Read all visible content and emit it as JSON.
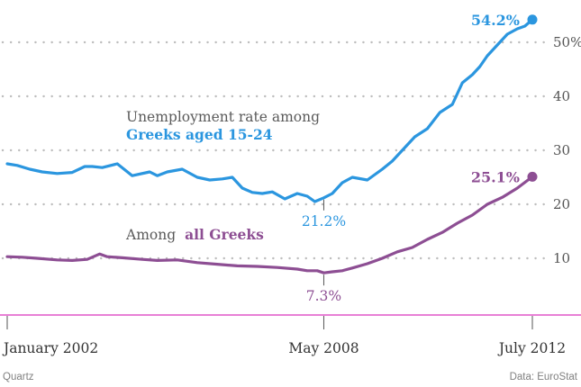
{
  "chart_data": {
    "type": "line",
    "title": "",
    "xlabel": "",
    "ylabel": "",
    "ylim": [
      0,
      55
    ],
    "xlim": [
      2002.0,
      2012.5
    ],
    "y_ticks": [
      10,
      20,
      30,
      40,
      50
    ],
    "y_tick_labels": [
      "10",
      "20",
      "30",
      "40",
      "50%"
    ],
    "x_tick_labels": [
      {
        "x": 2002.0,
        "label": "January 2002"
      },
      {
        "x": 2008.33,
        "label": "May 2008"
      },
      {
        "x": 2012.5,
        "label": "July 2012"
      }
    ],
    "grid": "dotted-horizontal",
    "series": [
      {
        "name": "Greeks aged 15-24",
        "label_prefix": "Unemployment rate among",
        "label_emphasis": "Greeks aged 15-24",
        "color": "#2b96df",
        "x": [
          2002.0,
          2002.2,
          2002.45,
          2002.7,
          2003.0,
          2003.3,
          2003.55,
          2003.7,
          2003.9,
          2004.2,
          2004.5,
          2004.85,
          2005.0,
          2005.2,
          2005.5,
          2005.8,
          2006.05,
          2006.3,
          2006.5,
          2006.7,
          2006.9,
          2007.1,
          2007.3,
          2007.55,
          2007.8,
          2008.0,
          2008.15,
          2008.33,
          2008.5,
          2008.7,
          2008.9,
          2009.2,
          2009.5,
          2009.7,
          2009.9,
          2010.15,
          2010.4,
          2010.65,
          2010.9,
          2011.1,
          2011.3,
          2011.45,
          2011.6,
          2011.8,
          2012.0,
          2012.2,
          2012.35,
          2012.5
        ],
        "values": [
          27.5,
          27.2,
          26.5,
          26.0,
          25.7,
          25.9,
          27.0,
          27.0,
          26.8,
          27.5,
          25.3,
          26.0,
          25.3,
          26.0,
          26.5,
          25.0,
          24.5,
          24.7,
          25.0,
          23.0,
          22.2,
          22.0,
          22.3,
          21.0,
          22.0,
          21.5,
          20.5,
          21.2,
          22.0,
          24.0,
          25.0,
          24.5,
          26.5,
          28.0,
          30.0,
          32.5,
          34.0,
          37.0,
          38.5,
          42.5,
          44.0,
          45.5,
          47.5,
          49.5,
          51.5,
          52.5,
          53.0,
          54.2
        ],
        "annotations": [
          {
            "x": 2008.33,
            "value": 21.2,
            "label": "21.2%"
          },
          {
            "x": 2012.5,
            "value": 54.2,
            "label": "54.2%"
          }
        ]
      },
      {
        "name": "all Greeks",
        "label_prefix": "Among",
        "label_emphasis": "all Greeks",
        "color": "#8d4e93",
        "x": [
          2002.0,
          2002.3,
          2002.6,
          2003.0,
          2003.3,
          2003.6,
          2003.85,
          2004.0,
          2004.3,
          2004.7,
          2005.0,
          2005.4,
          2005.8,
          2006.2,
          2006.6,
          2007.0,
          2007.4,
          2007.8,
          2008.0,
          2008.2,
          2008.33,
          2008.5,
          2008.7,
          2008.9,
          2009.2,
          2009.5,
          2009.8,
          2010.1,
          2010.4,
          2010.7,
          2011.0,
          2011.3,
          2011.6,
          2011.9,
          2012.2,
          2012.5
        ],
        "values": [
          10.3,
          10.2,
          10.0,
          9.7,
          9.6,
          9.8,
          10.8,
          10.3,
          10.1,
          9.8,
          9.6,
          9.7,
          9.2,
          8.9,
          8.6,
          8.5,
          8.3,
          8.0,
          7.7,
          7.7,
          7.3,
          7.5,
          7.7,
          8.2,
          9.0,
          10.0,
          11.2,
          12.0,
          13.5,
          14.8,
          16.5,
          18.0,
          20.0,
          21.3,
          23.0,
          25.1
        ],
        "annotations": [
          {
            "x": 2008.33,
            "value": 7.3,
            "label": "7.3%"
          },
          {
            "x": 2012.5,
            "value": 25.1,
            "label": "25.1%"
          }
        ]
      }
    ]
  },
  "footer": {
    "source_left": "Quartz",
    "source_right": "Data: EuroStat"
  },
  "colors": {
    "axis": "#e056c8",
    "grid": "#bdbdbd",
    "tick_text": "#555555",
    "footer_text": "#808080"
  }
}
